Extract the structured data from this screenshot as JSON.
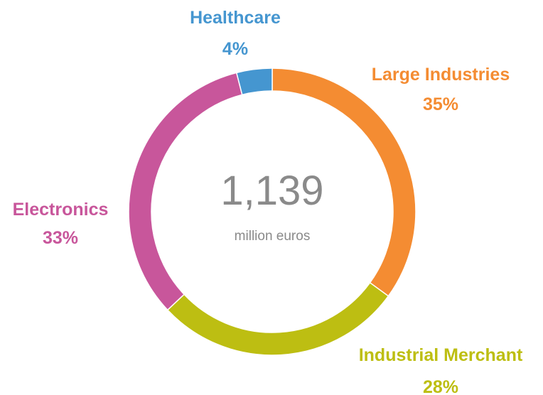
{
  "chart_data": {
    "type": "pie",
    "variant": "donut",
    "total": "1,139",
    "unit": "million euros",
    "legend": "labels around slices",
    "slices": [
      {
        "label": "Large Industries",
        "value": 35,
        "display": "35%",
        "color": "#F48C32"
      },
      {
        "label": "Industrial Merchant",
        "value": 28,
        "display": "28%",
        "color": "#BDBE12"
      },
      {
        "label": "Electronics",
        "value": 33,
        "display": "33%",
        "color": "#C8569B"
      },
      {
        "label": "Healthcare",
        "value": 4,
        "display": "4%",
        "color": "#4596D0"
      }
    ]
  }
}
